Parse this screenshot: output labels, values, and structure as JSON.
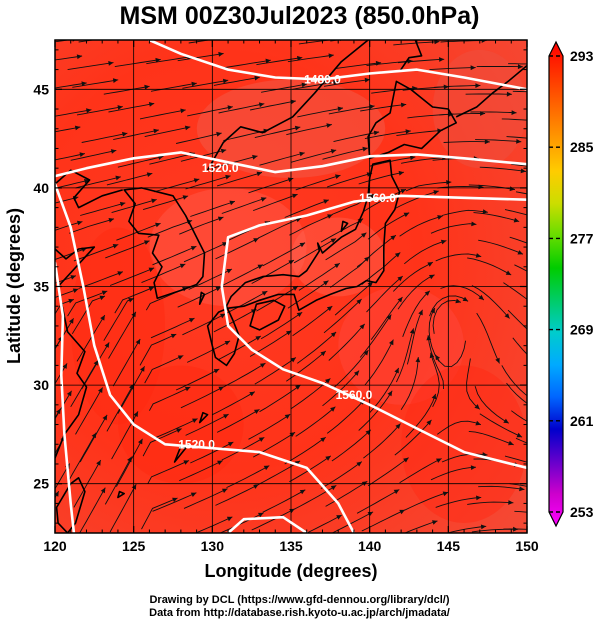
{
  "title": "MSM 00Z30Jul2023 (850.0hPa)",
  "chart_data": {
    "type": "map",
    "title": "MSM 00Z30Jul2023 (850.0hPa)",
    "xlabel": "Longitude (degrees)",
    "ylabel": "Latitude  (degrees)",
    "xlim": [
      120,
      150
    ],
    "ylim": [
      22.5,
      47.5
    ],
    "x_ticks": [
      120,
      125,
      130,
      135,
      140,
      145,
      150
    ],
    "y_ticks": [
      25,
      30,
      35,
      40,
      45
    ],
    "grid": true,
    "colorbar": {
      "min": 253,
      "max": 293,
      "tick_values": [
        253,
        261,
        269,
        277,
        285,
        293
      ],
      "tick_labels": [
        "253",
        "261",
        "269",
        "277",
        "285",
        "293"
      ],
      "colors": [
        "#ff00ff",
        "#cc00cc",
        "#6600cc",
        "#0000cc",
        "#0066ff",
        "#00aaff",
        "#00cccc",
        "#00cc66",
        "#00cc00",
        "#66dd00",
        "#ccdd00",
        "#ffcc00",
        "#ff9900",
        "#ff6600",
        "#ff3300",
        "#ff0000"
      ]
    },
    "contour_labels": [
      {
        "text": "1480.0",
        "lon": 137.0,
        "lat": 45.5
      },
      {
        "text": "1520.0",
        "lon": 130.5,
        "lat": 41.0
      },
      {
        "text": "1560.0",
        "lon": 140.5,
        "lat": 39.5
      },
      {
        "text": "1560.0",
        "lon": 139.0,
        "lat": 29.5
      },
      {
        "text": "1520.0",
        "lon": 129.0,
        "lat": 27.0
      }
    ],
    "contours": [
      {
        "level": 1480,
        "points": [
          [
            126,
            47.5
          ],
          [
            128,
            46.8
          ],
          [
            131,
            46.0
          ],
          [
            134,
            45.6
          ],
          [
            137,
            45.5
          ],
          [
            140,
            45.8
          ],
          [
            143,
            46.0
          ],
          [
            146,
            45.6
          ],
          [
            150,
            45.0
          ]
        ]
      },
      {
        "level": 1520,
        "points": [
          [
            120,
            40.6
          ],
          [
            122,
            41.0
          ],
          [
            125,
            41.5
          ],
          [
            128,
            41.8
          ],
          [
            131,
            41.3
          ],
          [
            134,
            40.8
          ],
          [
            137,
            41.1
          ],
          [
            140,
            41.6
          ],
          [
            143,
            41.7
          ],
          [
            146,
            41.5
          ],
          [
            150,
            41.2
          ]
        ]
      },
      {
        "level": 1560,
        "points": [
          [
            150,
            39.4
          ],
          [
            146,
            39.5
          ],
          [
            142,
            39.6
          ],
          [
            139,
            39.3
          ],
          [
            136,
            38.6
          ],
          [
            133,
            38.1
          ],
          [
            131,
            37.5
          ],
          [
            130.6,
            35.0
          ],
          [
            131.0,
            33.0
          ],
          [
            132.5,
            31.8
          ],
          [
            134.5,
            30.8
          ],
          [
            137,
            30.1
          ],
          [
            140,
            29.0
          ],
          [
            143,
            27.8
          ],
          [
            146,
            26.6
          ],
          [
            150,
            25.8
          ]
        ]
      },
      {
        "level": 1520,
        "points": [
          [
            120,
            40.2
          ],
          [
            121,
            38.0
          ],
          [
            121.8,
            35.0
          ],
          [
            122.5,
            32.0
          ],
          [
            123.5,
            29.5
          ],
          [
            125.0,
            28.0
          ],
          [
            127.0,
            27.0
          ],
          [
            130,
            26.8
          ],
          [
            133,
            26.6
          ],
          [
            136,
            25.8
          ],
          [
            138,
            24.0
          ],
          [
            139,
            22.5
          ]
        ]
      },
      {
        "level": 1520,
        "points": [
          [
            120,
            36.2
          ],
          [
            120.5,
            33.5
          ],
          [
            120.4,
            30.5
          ],
          [
            120.6,
            27.5
          ],
          [
            121,
            24.0
          ],
          [
            121.2,
            22.5
          ]
        ]
      },
      {
        "level": 1560,
        "points": [
          [
            131,
            22.5
          ],
          [
            132,
            23.2
          ],
          [
            134.5,
            23.3
          ],
          [
            136,
            22.5
          ]
        ]
      }
    ],
    "coastlines": [
      {
        "name": "japan-main",
        "points": [
          [
            130.9,
            31.0
          ],
          [
            130.2,
            31.4
          ],
          [
            130.0,
            32.0
          ],
          [
            129.7,
            33.0
          ],
          [
            130.4,
            33.7
          ],
          [
            131.0,
            33.9
          ],
          [
            132.0,
            34.0
          ],
          [
            133.0,
            34.3
          ],
          [
            134.2,
            34.6
          ],
          [
            135.2,
            34.6
          ],
          [
            135.5,
            33.8
          ],
          [
            136.6,
            34.3
          ],
          [
            137.5,
            34.6
          ],
          [
            138.5,
            34.9
          ],
          [
            139.2,
            35.0
          ],
          [
            139.8,
            35.3
          ],
          [
            140.4,
            35.2
          ],
          [
            140.9,
            35.8
          ],
          [
            140.9,
            37.0
          ],
          [
            141.0,
            38.2
          ],
          [
            141.6,
            38.9
          ],
          [
            141.9,
            39.8
          ],
          [
            141.4,
            40.6
          ],
          [
            141.3,
            41.4
          ],
          [
            140.2,
            41.2
          ],
          [
            140.0,
            40.5
          ],
          [
            139.9,
            39.6
          ],
          [
            139.6,
            38.8
          ],
          [
            139.1,
            37.9
          ],
          [
            138.2,
            37.5
          ],
          [
            137.3,
            36.9
          ],
          [
            137.0,
            36.7
          ],
          [
            136.7,
            37.2
          ],
          [
            136.8,
            36.8
          ],
          [
            136.0,
            35.8
          ],
          [
            135.5,
            35.5
          ],
          [
            134.5,
            35.6
          ],
          [
            133.2,
            35.5
          ],
          [
            132.1,
            35.2
          ],
          [
            131.2,
            34.5
          ],
          [
            130.9,
            34.0
          ],
          [
            131.3,
            33.3
          ],
          [
            131.7,
            32.5
          ],
          [
            131.4,
            31.6
          ],
          [
            130.9,
            31.0
          ]
        ]
      },
      {
        "name": "shikoku",
        "points": [
          [
            132.4,
            33.0
          ],
          [
            133.0,
            32.8
          ],
          [
            134.2,
            33.3
          ],
          [
            134.6,
            34.0
          ],
          [
            133.9,
            34.3
          ],
          [
            132.8,
            34.1
          ],
          [
            132.4,
            33.0
          ]
        ]
      },
      {
        "name": "hokkaido",
        "points": [
          [
            140.0,
            41.5
          ],
          [
            141.2,
            41.8
          ],
          [
            142.2,
            42.2
          ],
          [
            143.3,
            42.0
          ],
          [
            144.5,
            42.9
          ],
          [
            145.5,
            43.3
          ],
          [
            145.0,
            44.0
          ],
          [
            144.0,
            44.1
          ],
          [
            142.6,
            45.0
          ],
          [
            141.7,
            45.4
          ],
          [
            141.3,
            43.8
          ],
          [
            140.4,
            43.3
          ],
          [
            139.9,
            42.6
          ],
          [
            140.0,
            41.5
          ]
        ]
      },
      {
        "name": "sakhalin",
        "points": [
          [
            141.9,
            45.9
          ],
          [
            142.5,
            46.6
          ],
          [
            143.3,
            46.7
          ],
          [
            142.9,
            47.5
          ]
        ]
      },
      {
        "name": "korea",
        "points": [
          [
            129.4,
            35.5
          ],
          [
            129.0,
            35.1
          ],
          [
            128.0,
            34.8
          ],
          [
            126.5,
            34.4
          ],
          [
            126.3,
            35.2
          ],
          [
            126.8,
            36.0
          ],
          [
            126.2,
            36.7
          ],
          [
            126.6,
            37.6
          ],
          [
            125.3,
            37.7
          ],
          [
            124.7,
            38.3
          ],
          [
            125.1,
            39.2
          ],
          [
            124.4,
            39.9
          ],
          [
            125.5,
            40.0
          ],
          [
            127.5,
            39.6
          ],
          [
            128.3,
            38.6
          ],
          [
            129.5,
            36.7
          ],
          [
            129.4,
            35.5
          ]
        ]
      },
      {
        "name": "asia-coast-northeast",
        "points": [
          [
            124.3,
            39.9
          ],
          [
            123.0,
            39.6
          ],
          [
            121.5,
            39.0
          ],
          [
            121.2,
            39.5
          ],
          [
            122.2,
            40.4
          ],
          [
            121.0,
            40.9
          ],
          [
            120,
            40.2
          ]
        ]
      },
      {
        "name": "russia-coast",
        "points": [
          [
            129.7,
            40.9
          ],
          [
            130.7,
            42.3
          ],
          [
            131.8,
            43.1
          ],
          [
            133.2,
            42.8
          ],
          [
            135.1,
            43.6
          ],
          [
            136.5,
            44.8
          ],
          [
            138.2,
            46.4
          ],
          [
            139.9,
            47.5
          ]
        ]
      },
      {
        "name": "china-coast",
        "points": [
          [
            120,
            36.9
          ],
          [
            120.7,
            36.4
          ],
          [
            121.5,
            36.9
          ],
          [
            122.5,
            37.0
          ],
          [
            120.2,
            35.0
          ],
          [
            120.8,
            32.7
          ],
          [
            121.9,
            31.7
          ],
          [
            121.4,
            30.6
          ],
          [
            122.0,
            29.9
          ],
          [
            121.5,
            28.5
          ],
          [
            120.6,
            27.5
          ],
          [
            120.0,
            26.3
          ]
        ]
      },
      {
        "name": "taiwan",
        "points": [
          [
            121.5,
            25.3
          ],
          [
            121.9,
            24.6
          ],
          [
            121.3,
            23.0
          ],
          [
            120.8,
            22.5
          ],
          [
            120.2,
            23.0
          ],
          [
            120.1,
            23.8
          ],
          [
            121.0,
            25.0
          ],
          [
            121.5,
            25.3
          ]
        ]
      },
      {
        "name": "ryukyu-1",
        "points": [
          [
            127.6,
            26.1
          ],
          [
            128.3,
            26.8
          ],
          [
            128.0,
            26.9
          ],
          [
            127.6,
            26.1
          ]
        ]
      },
      {
        "name": "ryukyu-2",
        "points": [
          [
            129.2,
            28.1
          ],
          [
            129.7,
            28.5
          ],
          [
            129.4,
            28.6
          ],
          [
            129.2,
            28.1
          ]
        ]
      },
      {
        "name": "ryukyu-3",
        "points": [
          [
            124.0,
            24.3
          ],
          [
            124.4,
            24.5
          ],
          [
            124.1,
            24.6
          ],
          [
            124.0,
            24.3
          ]
        ]
      },
      {
        "name": "tsushima",
        "points": [
          [
            129.2,
            34.1
          ],
          [
            129.5,
            34.6
          ],
          [
            129.3,
            34.7
          ],
          [
            129.2,
            34.1
          ]
        ]
      },
      {
        "name": "sado",
        "points": [
          [
            138.2,
            37.8
          ],
          [
            138.6,
            38.2
          ],
          [
            138.3,
            38.3
          ],
          [
            138.2,
            37.8
          ]
        ]
      },
      {
        "name": "kuril",
        "points": [
          [
            145.5,
            43.6
          ],
          [
            146.8,
            44.1
          ],
          [
            147.8,
            44.8
          ],
          [
            148.8,
            45.4
          ],
          [
            150,
            46.2
          ]
        ]
      }
    ]
  },
  "credits": {
    "line1": "Drawing by DCL (https://www.gfd-dennou.org/library/dcl/)",
    "line2": "Data from http://database.rish.kyoto-u.ac.jp/arch/jmadata/"
  }
}
